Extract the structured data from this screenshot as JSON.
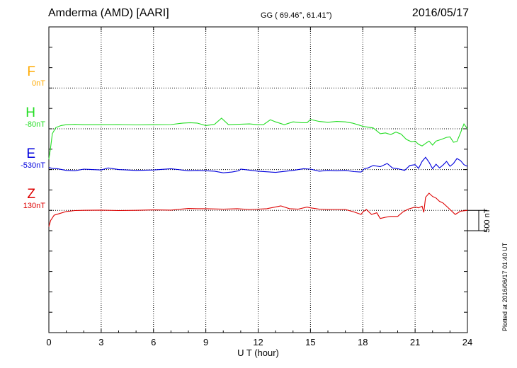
{
  "header": {
    "station": "Amderma (AMD)  [AARI]",
    "coords": "GG ( 69.46°,  61.41°)",
    "date": "2016/05/17"
  },
  "colors": {
    "F": "#ffaa00",
    "H": "#22dd22",
    "E": "#0000dd",
    "Z": "#dd0000"
  },
  "components": [
    {
      "key": "F",
      "letter": "F",
      "baseline": "0nT"
    },
    {
      "key": "H",
      "letter": "H",
      "baseline": "-80nT"
    },
    {
      "key": "E",
      "letter": "E",
      "baseline": "-530nT"
    },
    {
      "key": "Z",
      "letter": "Z",
      "baseline": "130nT"
    }
  ],
  "plotted_text": "Plotted at 2016/06/17 01:40 UT",
  "chart_data": {
    "type": "line",
    "xlabel": "U T (hour)",
    "xlim": [
      0,
      24
    ],
    "xticks": [
      "0",
      "3",
      "6",
      "9",
      "12",
      "15",
      "18",
      "21",
      "24"
    ],
    "grid": true,
    "scale_bar": {
      "label": "500 nT",
      "value": 500
    },
    "ylim": [
      -4000,
      3500
    ],
    "y_offsets": {
      "F": 2000,
      "H": 1000,
      "E": 0,
      "Z": -1000
    },
    "series": [
      {
        "name": "H",
        "baseline": "-80nT",
        "color": "#22dd22",
        "x": [
          0,
          0.1,
          0.2,
          0.4,
          0.7,
          1.0,
          1.5,
          2,
          3,
          4,
          5,
          6,
          7,
          7.7,
          8.1,
          8.5,
          9,
          9.5,
          9.9,
          10.3,
          10.8,
          11.5,
          12,
          12.3,
          12.7,
          13,
          13.5,
          14,
          14.5,
          14.8,
          15,
          15.5,
          16,
          16.5,
          17,
          17.4,
          17.8,
          18,
          18.3,
          18.6,
          19,
          19.3,
          19.6,
          19.9,
          20.2,
          20.5,
          20.8,
          21,
          21.2,
          21.4,
          21.6,
          21.8,
          22,
          22.2,
          22.5,
          22.8,
          23,
          23.2,
          23.4,
          23.6,
          23.8,
          24
        ],
        "y": [
          -750,
          -450,
          -120,
          30,
          80,
          100,
          110,
          100,
          100,
          105,
          95,
          100,
          105,
          140,
          150,
          140,
          80,
          110,
          260,
          100,
          110,
          120,
          100,
          100,
          220,
          170,
          100,
          170,
          150,
          150,
          230,
          180,
          160,
          180,
          170,
          140,
          90,
          60,
          40,
          20,
          -120,
          -100,
          -140,
          -80,
          -130,
          -260,
          -320,
          -300,
          -380,
          -420,
          -360,
          -300,
          -400,
          -300,
          -260,
          -210,
          -200,
          -330,
          -310,
          -100,
          120,
          0
        ]
      },
      {
        "name": "E",
        "baseline": "-530nT",
        "color": "#0000dd",
        "x": [
          0,
          0.2,
          0.5,
          1,
          1.5,
          2,
          3,
          3.4,
          4,
          5,
          6,
          7,
          8,
          8.5,
          9,
          9.5,
          10,
          10.5,
          10.9,
          11,
          12,
          13,
          14,
          14.6,
          15,
          15.5,
          16,
          16.5,
          17,
          17.5,
          17.9,
          18.1,
          18.3,
          18.6,
          19,
          19.4,
          19.7,
          20,
          20.4,
          20.7,
          21,
          21.2,
          21.4,
          21.6,
          21.8,
          22,
          22.2,
          22.4,
          22.6,
          22.8,
          23,
          23.2,
          23.4,
          23.6,
          23.8,
          24
        ],
        "y": [
          50,
          30,
          20,
          -20,
          -30,
          10,
          -10,
          40,
          0,
          -20,
          -10,
          20,
          -30,
          -20,
          -30,
          -40,
          -80,
          -60,
          -30,
          10,
          -40,
          -70,
          -20,
          20,
          10,
          -40,
          -20,
          -30,
          -20,
          -50,
          -60,
          20,
          40,
          100,
          70,
          150,
          40,
          20,
          -20,
          100,
          120,
          30,
          200,
          300,
          180,
          20,
          130,
          40,
          110,
          200,
          80,
          150,
          270,
          220,
          120,
          80
        ]
      },
      {
        "name": "Z",
        "baseline": "130nT",
        "color": "#dd0000",
        "x": [
          0,
          0.1,
          0.3,
          0.6,
          1,
          1.5,
          2,
          3,
          4,
          5,
          6,
          7,
          8,
          8.5,
          9,
          10,
          10.8,
          11.5,
          12,
          12.5,
          13.3,
          13.8,
          14.3,
          14.8,
          15,
          15.5,
          16,
          16.5,
          17,
          17.5,
          17.9,
          18,
          18.2,
          18.5,
          18.8,
          19,
          19.3,
          19.6,
          20,
          20.3,
          20.6,
          21,
          21.2,
          21.4,
          21.5,
          21.6,
          21.8,
          22,
          22.2,
          22.4,
          22.6,
          22.8,
          23,
          23.3,
          23.6,
          24
        ],
        "y": [
          -400,
          -250,
          -120,
          -80,
          -30,
          -5,
          0,
          5,
          -5,
          0,
          10,
          5,
          45,
          40,
          40,
          30,
          40,
          20,
          30,
          40,
          110,
          40,
          30,
          80,
          60,
          30,
          20,
          20,
          20,
          -40,
          -100,
          -40,
          20,
          -100,
          -60,
          -200,
          -170,
          -150,
          -150,
          -40,
          30,
          80,
          60,
          100,
          -50,
          320,
          420,
          340,
          300,
          220,
          180,
          100,
          20,
          -100,
          -20,
          0
        ]
      }
    ]
  }
}
